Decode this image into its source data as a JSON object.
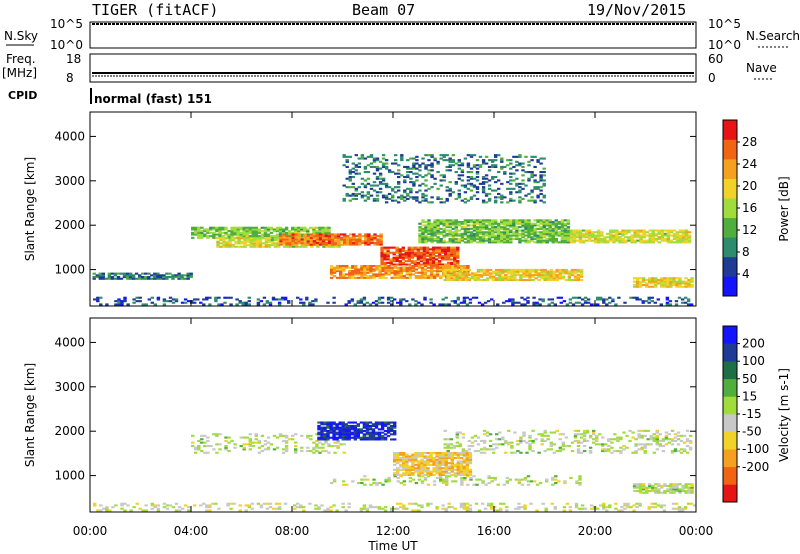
{
  "header": {
    "station": "TIGER (fitACF)",
    "beam": "Beam 07",
    "date": "19/Nov/2015"
  },
  "strips": {
    "nsky": {
      "label": "N.Sky",
      "ticks": [
        "10^5",
        "10^0"
      ]
    },
    "nsearch": {
      "label": "N.Search",
      "ticks": [
        "10^5",
        "10^0"
      ]
    },
    "freq": {
      "label_line1": "Freq.",
      "label_line2": "[MHz]",
      "ticks": [
        "18",
        "8"
      ]
    },
    "nave": {
      "label": "Nave",
      "ticks": [
        "60",
        "0"
      ]
    },
    "cpid": {
      "label": "CPID",
      "value": "normal (fast) 151"
    }
  },
  "colors": {
    "power": [
      "#1414ff",
      "#1e3c96",
      "#2d8c6e",
      "#50af3c",
      "#a0dc3c",
      "#f0d228",
      "#f5a01e",
      "#f06414",
      "#e61414"
    ],
    "velocity": [
      "#e61414",
      "#f06414",
      "#f5a01e",
      "#f0d228",
      "#c8c8c8",
      "#a0dc3c",
      "#50af3c",
      "#1e6e46",
      "#1e3c96",
      "#1414ff"
    ]
  },
  "chart_data": [
    {
      "type": "heatmap",
      "panel": "power",
      "title": "",
      "xlabel": "",
      "ylabel": "Slant Range [km]",
      "xlim": [
        "00:00",
        "24:00"
      ],
      "ylim": [
        180,
        4550
      ],
      "yticks": [
        "1000",
        "2000",
        "3000",
        "4000"
      ],
      "colorbar_label": "Power [dB]",
      "colorbar_ticks": [
        "4",
        "8",
        "12",
        "16",
        "20",
        "24",
        "28"
      ],
      "colorbar_range": [
        0,
        32
      ],
      "regions": [
        {
          "name": "near-range clutter",
          "t": [
            0.0,
            23.9
          ],
          "r": [
            200,
            360
          ],
          "value": 6
        },
        {
          "name": "early band",
          "t": [
            0.1,
            4.0
          ],
          "r": [
            780,
            900
          ],
          "value": 8
        },
        {
          "name": "evening band 1",
          "t": [
            4.0,
            9.5
          ],
          "r": [
            1700,
            1950
          ],
          "value": 14
        },
        {
          "name": "evening band 2",
          "t": [
            5.0,
            10.0
          ],
          "r": [
            1500,
            1700
          ],
          "value": 18
        },
        {
          "name": "core 1",
          "t": [
            7.5,
            11.5
          ],
          "r": [
            1550,
            1800
          ],
          "value": 26
        },
        {
          "name": "core 2",
          "t": [
            11.5,
            14.5
          ],
          "r": [
            1100,
            1500
          ],
          "value": 28
        },
        {
          "name": "core 3",
          "t": [
            9.5,
            15.0
          ],
          "r": [
            800,
            1100
          ],
          "value": 24
        },
        {
          "name": "mid band",
          "t": [
            14.0,
            19.5
          ],
          "r": [
            750,
            1000
          ],
          "value": 20
        },
        {
          "name": "upper band",
          "t": [
            13.0,
            19.0
          ],
          "r": [
            1600,
            2100
          ],
          "value": 14
        },
        {
          "name": "late band",
          "t": [
            19.0,
            23.8
          ],
          "r": [
            1600,
            1900
          ],
          "value": 18
        },
        {
          "name": "late low",
          "t": [
            21.5,
            23.8
          ],
          "r": [
            600,
            800
          ],
          "value": 20
        },
        {
          "name": "scatter high",
          "t": [
            10.0,
            18.0
          ],
          "r": [
            2500,
            3600
          ],
          "value": 8
        }
      ]
    },
    {
      "type": "heatmap",
      "panel": "velocity",
      "title": "",
      "xlabel": "Time UT",
      "ylabel": "Slant Range [km]",
      "xlim": [
        "00:00",
        "24:00"
      ],
      "xticks": [
        "00:00",
        "04:00",
        "08:00",
        "12:00",
        "16:00",
        "20:00",
        "00:00"
      ],
      "ylim": [
        180,
        4550
      ],
      "yticks": [
        "1000",
        "2000",
        "3000",
        "4000"
      ],
      "colorbar_label": "Velocity [m s-1]",
      "colorbar_ticks": [
        "200",
        "100",
        "50",
        "15",
        "-15",
        "-50",
        "-100",
        "-200"
      ],
      "colorbar_range": [
        -250,
        250
      ],
      "regions": [
        {
          "name": "near-range clutter",
          "t": [
            0.0,
            23.9
          ],
          "r": [
            200,
            360
          ],
          "value": -20
        },
        {
          "name": "ground scatter 1",
          "t": [
            4.0,
            10.0
          ],
          "r": [
            1500,
            1950
          ],
          "value": 0
        },
        {
          "name": "ground scatter 2",
          "t": [
            14.0,
            23.8
          ],
          "r": [
            1500,
            2000
          ],
          "value": 0
        },
        {
          "name": "ground scatter 3",
          "t": [
            9.5,
            19.5
          ],
          "r": [
            780,
            1000
          ],
          "value": 0
        },
        {
          "name": "ionospheric toward",
          "t": [
            9.0,
            12.0
          ],
          "r": [
            1800,
            2200
          ],
          "value": 200
        },
        {
          "name": "ionospheric away",
          "t": [
            12.0,
            15.0
          ],
          "r": [
            1000,
            1500
          ],
          "value": -80
        },
        {
          "name": "late low",
          "t": [
            21.5,
            23.8
          ],
          "r": [
            600,
            800
          ],
          "value": 0
        }
      ]
    }
  ]
}
